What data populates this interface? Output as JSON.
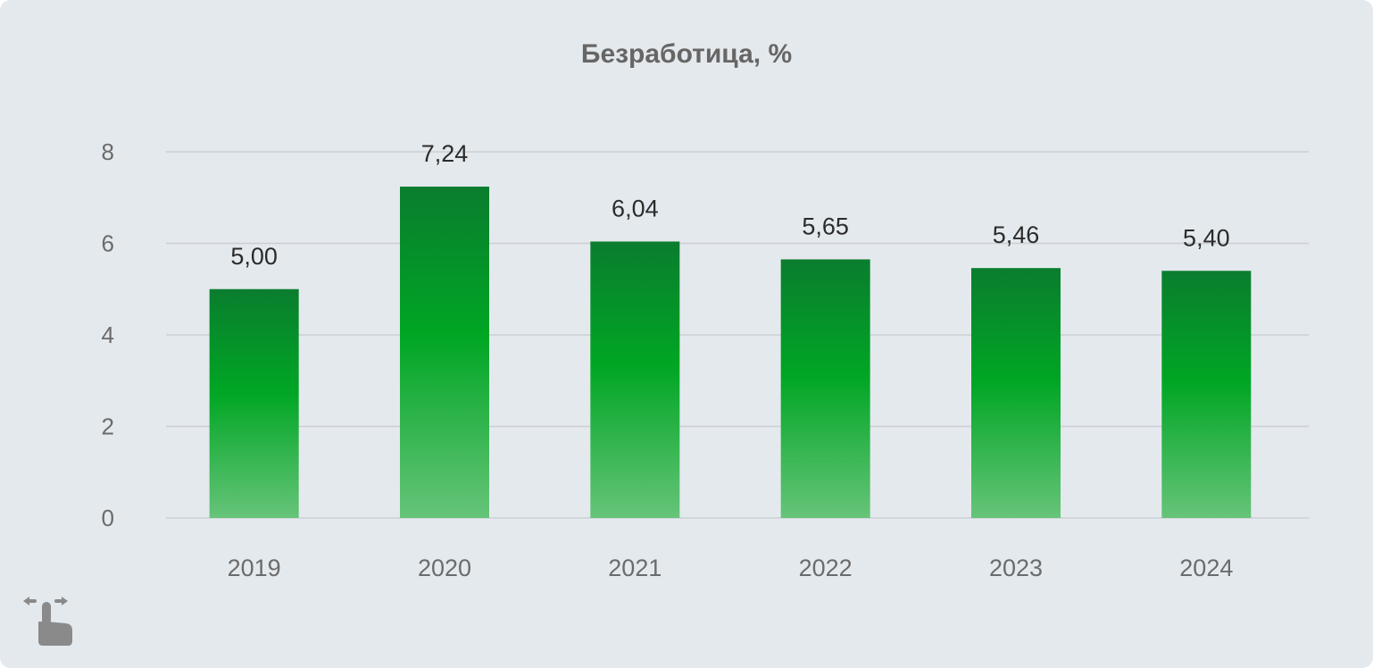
{
  "chart_data": {
    "type": "bar",
    "title": "Безработица, %",
    "categories": [
      "2019",
      "2020",
      "2021",
      "2022",
      "2023",
      "2024"
    ],
    "values": [
      5.0,
      7.24,
      6.04,
      5.65,
      5.46,
      5.4
    ],
    "value_labels": [
      "5,00",
      "7,24",
      "6,04",
      "5,65",
      "5,46",
      "5,40"
    ],
    "yticks": [
      "0",
      "2",
      "4",
      "6",
      "8"
    ],
    "ylim": [
      0,
      8
    ],
    "grid": true,
    "colors": {
      "bar_top": "#0a7d2e",
      "bar_mid": "#00a624",
      "bar_bottom": "#66c479",
      "grid": "#c9cfd4",
      "tick_text": "#6b6b6b",
      "value_text": "#2b2b2b"
    }
  },
  "swipe_hint": {
    "icon": "swipe-hand-icon"
  }
}
